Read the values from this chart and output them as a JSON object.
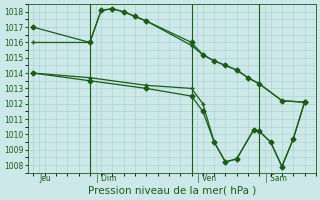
{
  "bg_color": "#cce8e8",
  "grid_color": "#aacccc",
  "line_color": "#1a5c1a",
  "xlabel": "Pression niveau de la mer( hPa )",
  "ylim": [
    1007.5,
    1018.5
  ],
  "yticks": [
    1008,
    1009,
    1010,
    1011,
    1012,
    1013,
    1014,
    1015,
    1016,
    1017,
    1018
  ],
  "xlim": [
    -0.5,
    25
  ],
  "day_labels": [
    "Jeu",
    "| Dim",
    "| Ven",
    "| Sam"
  ],
  "day_positions": [
    0.5,
    5.5,
    14.5,
    20.5
  ],
  "vline_positions": [
    5.0,
    14.0,
    20.0
  ],
  "s1_x": [
    0,
    5,
    6,
    7,
    8,
    9,
    10,
    14,
    15,
    16,
    17,
    18,
    19,
    20,
    22,
    24
  ],
  "s1_y": [
    1017.0,
    1016.0,
    1018.1,
    1018.2,
    1018.0,
    1017.7,
    1017.4,
    1016.0,
    1015.2,
    1014.8,
    1014.5,
    1014.2,
    1013.7,
    1013.3,
    1012.2,
    1012.1
  ],
  "s2_x": [
    0,
    5,
    6,
    7,
    8,
    9,
    10,
    14,
    15,
    16,
    17,
    18,
    19,
    20,
    22,
    24
  ],
  "s2_y": [
    1016.0,
    1016.0,
    1018.1,
    1018.2,
    1018.0,
    1017.7,
    1017.4,
    1015.8,
    1015.2,
    1014.8,
    1014.5,
    1014.2,
    1013.7,
    1013.3,
    1012.2,
    1012.1
  ],
  "s3_x": [
    0,
    5,
    10,
    14,
    15,
    16,
    17,
    18,
    19.5,
    20,
    21,
    22,
    23,
    24
  ],
  "s3_y": [
    1014.0,
    1013.7,
    1013.2,
    1013.0,
    1012.0,
    1009.5,
    1008.2,
    1008.4,
    1010.3,
    1010.2,
    1009.5,
    1007.9,
    1009.7,
    1012.1
  ],
  "s4_x": [
    0,
    5,
    10,
    14,
    15,
    16,
    17,
    18,
    19.5,
    20,
    21,
    22,
    23,
    24
  ],
  "s4_y": [
    1014.0,
    1013.5,
    1013.0,
    1012.5,
    1011.5,
    1009.5,
    1008.2,
    1008.4,
    1010.3,
    1010.2,
    1009.5,
    1007.9,
    1009.7,
    1012.1
  ],
  "tick_fontsize": 5.5,
  "label_fontsize": 7.5,
  "lw": 0.9,
  "ms": 2.5
}
